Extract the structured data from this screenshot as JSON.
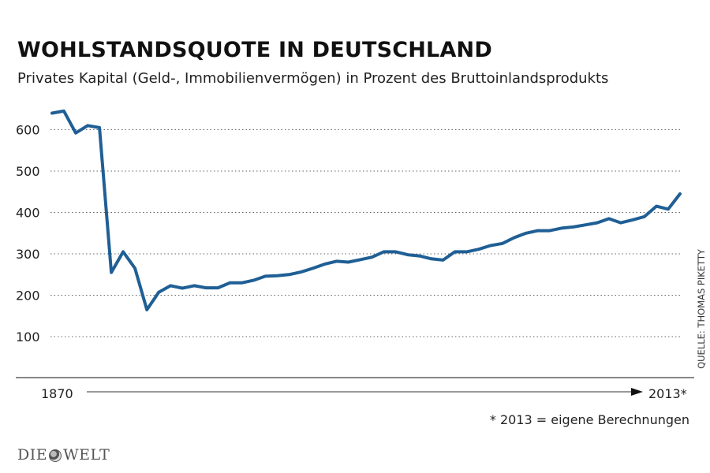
{
  "title": "WOHLSTANDSQUOTE IN DEUTSCHLAND",
  "subtitle": "Privates Kapital (Geld-, Immobilienvermögen) in Prozent des Bruttoinlandsprodukts",
  "source": "QUELLE: THOMAS PIKETTY",
  "footnote": "* 2013 = eigene Berechnungen",
  "logo": {
    "left": "DIE",
    "right": "WELT"
  },
  "colors": {
    "line": "#1f5f95",
    "grid": "#666666",
    "axis": "#111111"
  },
  "chart_data": {
    "type": "line",
    "title": "WOHLSTANDSQUOTE IN DEUTSCHLAND",
    "x_start_label": "1870",
    "x_end_label": "2013*",
    "ylim": [
      0,
      660
    ],
    "yticks": [
      100,
      200,
      300,
      400,
      500,
      600
    ],
    "grid": true,
    "grid_style": "dotted",
    "x_axis": "arrow from 1870 to 2013",
    "series": [
      {
        "values": [
          640,
          645,
          592,
          610,
          605,
          255,
          305,
          265,
          165,
          207,
          223,
          217,
          223,
          218,
          218,
          230,
          230,
          236,
          246,
          247,
          250,
          256,
          265,
          275,
          282,
          280,
          286,
          292,
          305,
          305,
          298,
          295,
          288,
          285,
          305,
          305,
          311,
          320,
          325,
          339,
          350,
          356,
          356,
          362,
          365,
          370,
          375,
          385,
          375,
          382,
          390,
          415,
          408,
          445
        ]
      }
    ]
  }
}
